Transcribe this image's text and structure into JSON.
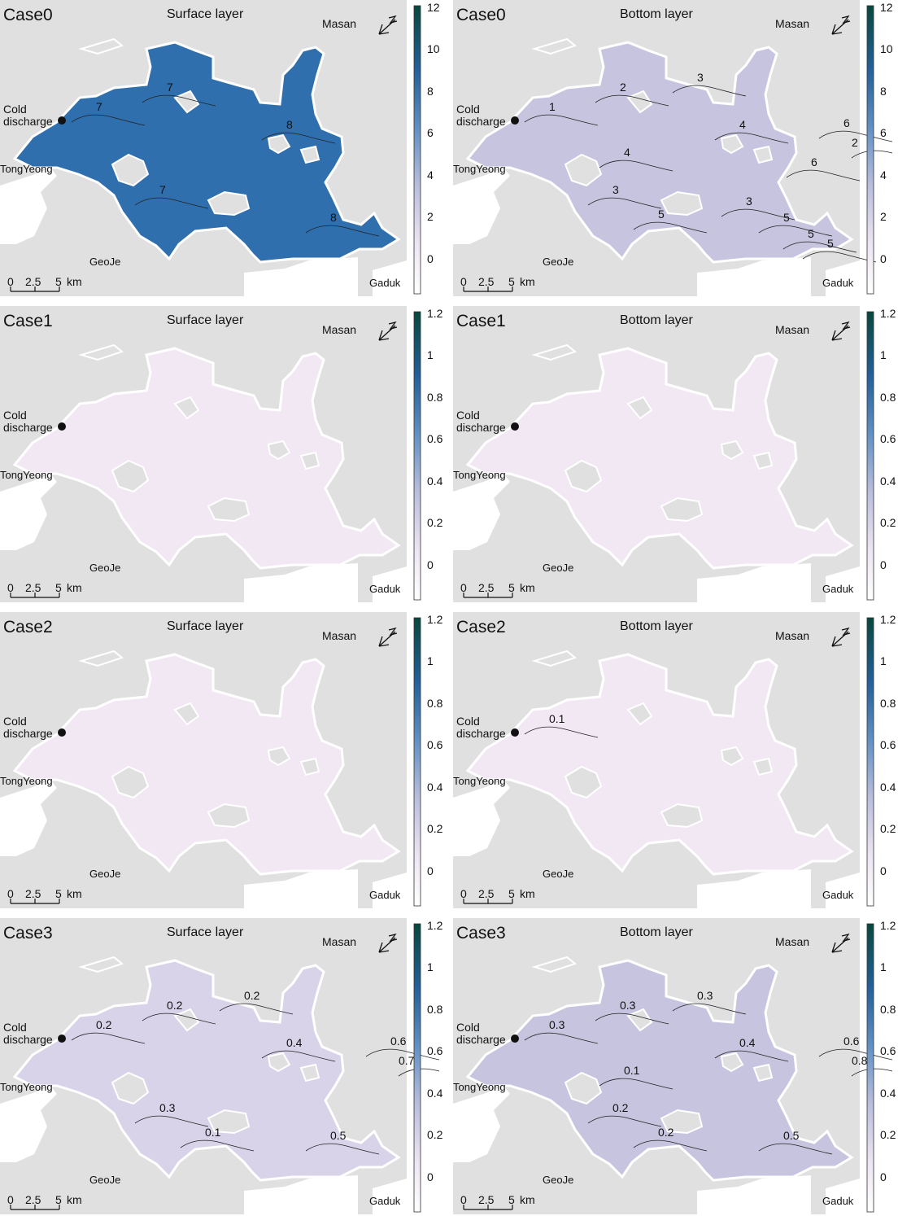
{
  "scale_bar": {
    "zero": "0",
    "mid": "2.5",
    "five": "5",
    "unit": "km"
  },
  "places": {
    "masan": "Masan",
    "tongyeong": "TongYeong",
    "cold_line1": "Cold",
    "cold_line2": "discharge",
    "geoje": "GeoJe",
    "gaduk": "Gaduk"
  },
  "colors": {
    "land": "#e0e0e0",
    "outline": "#ffffff",
    "case0": "#2f6fad",
    "pale": "#f2e8f4",
    "lavender": "#c7c4e0",
    "mid": "#8f9fcd",
    "deep": "#1f5d8f",
    "darkest": "#0b4a3f"
  },
  "panels": [
    {
      "case": "Case0",
      "layer": "Surface layer",
      "fill": "#2f6fad",
      "colorbar": {
        "ticks": [
          "12",
          "10",
          "8",
          "6",
          "4",
          "2",
          "0"
        ]
      },
      "contours": [
        "7",
        "7",
        "7",
        "8",
        "8"
      ]
    },
    {
      "case": "Case0",
      "layer": "Bottom layer",
      "fill": "#c7c4e0",
      "colorbar": {
        "ticks": [
          "12",
          "10",
          "8",
          "6",
          "4",
          "2",
          "0"
        ]
      },
      "contours": [
        "1",
        "2",
        "3",
        "4",
        "5",
        "6",
        "2",
        "3",
        "5",
        "4",
        "6",
        "5",
        "5",
        "3"
      ]
    },
    {
      "case": "Case1",
      "layer": "Surface layer",
      "fill": "#f2e8f4",
      "colorbar": {
        "ticks": [
          "1.2",
          "1",
          "0.8",
          "0.6",
          "0.4",
          "0.2",
          "0"
        ]
      },
      "contours": []
    },
    {
      "case": "Case1",
      "layer": "Bottom layer",
      "fill": "#f2e8f4",
      "colorbar": {
        "ticks": [
          "1.2",
          "1",
          "0.8",
          "0.6",
          "0.4",
          "0.2",
          "0"
        ]
      },
      "contours": []
    },
    {
      "case": "Case2",
      "layer": "Surface layer",
      "fill": "#f2e8f4",
      "colorbar": {
        "ticks": [
          "1.2",
          "1",
          "0.8",
          "0.6",
          "0.4",
          "0.2",
          "0"
        ]
      },
      "contours": []
    },
    {
      "case": "Case2",
      "layer": "Bottom layer",
      "fill": "#f2e8f4",
      "colorbar": {
        "ticks": [
          "1.2",
          "1",
          "0.8",
          "0.6",
          "0.4",
          "0.2",
          "0"
        ]
      },
      "contours": [
        "0.1"
      ]
    },
    {
      "case": "Case3",
      "layer": "Surface layer",
      "fill": "#d9d3ea",
      "colorbar": {
        "ticks": [
          "1.2",
          "1",
          "0.8",
          "0.6",
          "0.4",
          "0.2",
          "0"
        ]
      },
      "contours": [
        "0.2",
        "0.2",
        "0.3",
        "0.4",
        "0.5",
        "0.6",
        "0.7",
        "0.2",
        "0.1"
      ]
    },
    {
      "case": "Case3",
      "layer": "Bottom layer",
      "fill": "#c7c4e0",
      "colorbar": {
        "ticks": [
          "1.2",
          "1",
          "0.8",
          "0.6",
          "0.4",
          "0.2",
          "0"
        ]
      },
      "contours": [
        "0.3",
        "0.3",
        "0.2",
        "0.4",
        "0.5",
        "0.6",
        "0.8",
        "0.3",
        "0.2",
        "0.1"
      ]
    }
  ]
}
